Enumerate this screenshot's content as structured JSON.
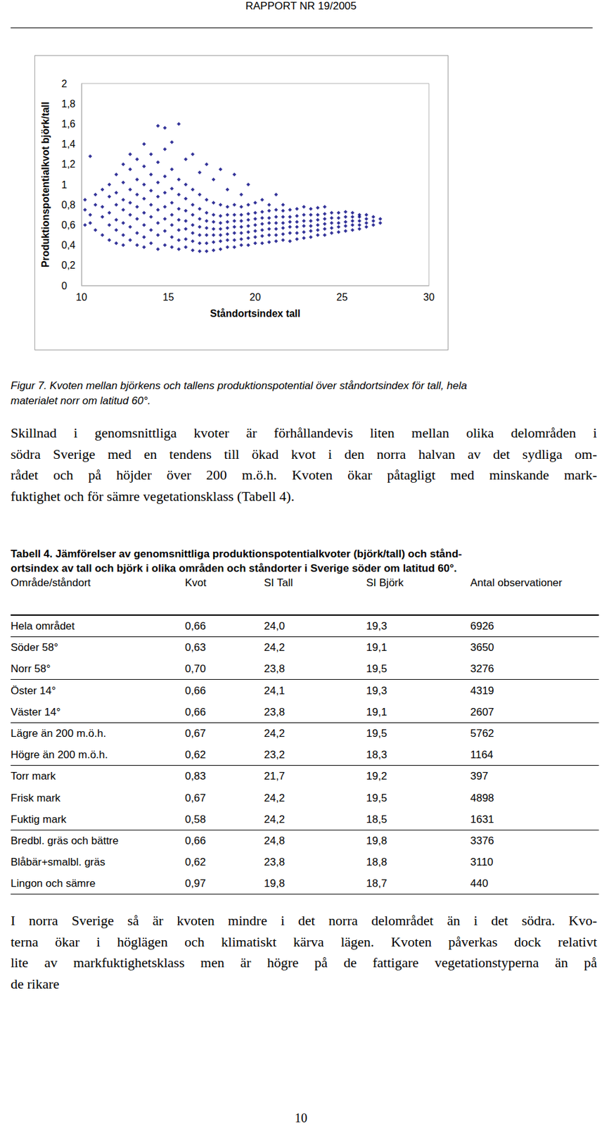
{
  "header": "RAPPORT NR 19/2005",
  "chart_data": {
    "type": "scatter",
    "x_label": "Ståndortsindex tall",
    "y_label": "Produktionspotentialkvot björk/tall",
    "color": "#000080",
    "marker": "diamond",
    "grid": false,
    "xlim": [
      10,
      30
    ],
    "xticks": [
      10,
      15,
      20,
      25,
      30
    ],
    "ylim": [
      0,
      2
    ],
    "yticks": [
      0,
      {
        "value": 0.2,
        "label": "0,2"
      },
      {
        "value": 0.4,
        "label": "0,4"
      },
      {
        "value": 0.6,
        "label": "0,6"
      },
      {
        "value": 0.8,
        "label": "0,8"
      },
      1,
      {
        "value": 1.2,
        "label": "1,2"
      },
      {
        "value": 1.4,
        "label": "1,4"
      },
      {
        "value": 1.6,
        "label": "1,6"
      },
      {
        "value": 1.8,
        "label": "1,8"
      },
      2
    ],
    "x": [
      10.2,
      10.2,
      10.2,
      10.5,
      10.5,
      10.5,
      10.8,
      10.8,
      10.8,
      11.2,
      11.2,
      11.2,
      11.2,
      11.6,
      11.6,
      11.6,
      11.6,
      11.6,
      12.0,
      12.0,
      12.0,
      12.0,
      12.0,
      12.0,
      12.4,
      12.4,
      12.4,
      12.4,
      12.4,
      12.4,
      12.4,
      12.8,
      12.8,
      12.8,
      12.8,
      12.8,
      12.8,
      12.8,
      13.2,
      13.2,
      13.2,
      13.2,
      13.2,
      13.2,
      13.2,
      13.6,
      13.6,
      13.6,
      13.6,
      13.6,
      13.6,
      13.6,
      13.6,
      14.0,
      14.0,
      14.0,
      14.0,
      14.0,
      14.0,
      14.0,
      14.4,
      14.4,
      14.4,
      14.4,
      14.4,
      14.4,
      14.4,
      14.4,
      14.8,
      14.8,
      14.8,
      14.8,
      14.8,
      14.8,
      14.8,
      14.8,
      15.2,
      15.2,
      15.2,
      15.2,
      15.2,
      15.2,
      15.2,
      15.2,
      15.6,
      15.6,
      15.6,
      15.6,
      15.6,
      15.6,
      15.6,
      15.6,
      16.0,
      16.0,
      16.0,
      16.0,
      16.0,
      16.0,
      16.0,
      16.0,
      16.4,
      16.4,
      16.4,
      16.4,
      16.4,
      16.4,
      16.4,
      16.4,
      16.8,
      16.8,
      16.8,
      16.8,
      16.8,
      16.8,
      16.8,
      16.8,
      17.2,
      17.2,
      17.2,
      17.2,
      17.2,
      17.2,
      17.2,
      17.2,
      17.6,
      17.6,
      17.6,
      17.6,
      17.6,
      17.6,
      17.6,
      17.6,
      18.0,
      18.0,
      18.0,
      18.0,
      18.0,
      18.0,
      18.0,
      18.0,
      18.4,
      18.4,
      18.4,
      18.4,
      18.4,
      18.4,
      18.4,
      18.4,
      18.8,
      18.8,
      18.8,
      18.8,
      18.8,
      18.8,
      18.8,
      18.8,
      19.2,
      19.2,
      19.2,
      19.2,
      19.2,
      19.2,
      19.2,
      19.2,
      19.6,
      19.6,
      19.6,
      19.6,
      19.6,
      19.6,
      19.6,
      19.6,
      20.0,
      20.0,
      20.0,
      20.0,
      20.0,
      20.0,
      20.0,
      20.4,
      20.4,
      20.4,
      20.4,
      20.4,
      20.4,
      20.4,
      20.8,
      20.8,
      20.8,
      20.8,
      20.8,
      20.8,
      20.8,
      21.2,
      21.2,
      21.2,
      21.2,
      21.2,
      21.2,
      21.2,
      21.6,
      21.6,
      21.6,
      21.6,
      21.6,
      21.6,
      21.6,
      22.0,
      22.0,
      22.0,
      22.0,
      22.0,
      22.0,
      22.4,
      22.4,
      22.4,
      22.4,
      22.4,
      22.4,
      22.8,
      22.8,
      22.8,
      22.8,
      22.8,
      22.8,
      23.2,
      23.2,
      23.2,
      23.2,
      23.2,
      23.2,
      23.6,
      23.6,
      23.6,
      23.6,
      23.6,
      23.6,
      24.0,
      24.0,
      24.0,
      24.0,
      24.0,
      24.0,
      24.4,
      24.4,
      24.4,
      24.4,
      24.4,
      24.8,
      24.8,
      24.8,
      24.8,
      24.8,
      25.2,
      25.2,
      25.2,
      25.2,
      25.2,
      25.6,
      25.6,
      25.6,
      25.6,
      25.6,
      26.0,
      26.0,
      26.0,
      26.0,
      26.0,
      26.4,
      26.4,
      26.4,
      26.4,
      26.8,
      26.8,
      26.8,
      27.2,
      27.2
    ],
    "values": [
      0.6,
      0.75,
      0.85,
      1.28,
      0.62,
      0.7,
      0.55,
      0.8,
      0.9,
      0.5,
      0.68,
      0.78,
      0.95,
      0.45,
      0.6,
      0.72,
      0.88,
      1.0,
      0.42,
      0.55,
      0.65,
      0.8,
      0.92,
      1.1,
      0.4,
      0.5,
      0.62,
      0.75,
      0.85,
      1.02,
      1.2,
      0.45,
      0.58,
      0.7,
      0.82,
      0.95,
      1.15,
      1.3,
      0.4,
      0.52,
      0.66,
      0.78,
      0.9,
      1.05,
      1.25,
      0.38,
      0.48,
      0.6,
      0.72,
      0.86,
      1.0,
      1.18,
      1.4,
      0.42,
      0.55,
      0.68,
      0.8,
      0.94,
      1.1,
      1.3,
      0.36,
      0.5,
      0.62,
      0.75,
      0.88,
      1.02,
      1.22,
      1.58,
      0.4,
      0.54,
      0.66,
      0.78,
      0.92,
      1.08,
      1.35,
      1.56,
      0.38,
      0.48,
      0.6,
      0.7,
      0.82,
      0.96,
      1.15,
      1.42,
      0.36,
      0.45,
      0.55,
      0.65,
      0.76,
      0.9,
      1.05,
      1.6,
      0.38,
      0.46,
      0.56,
      0.64,
      0.74,
      0.86,
      1.0,
      1.25,
      0.35,
      0.44,
      0.52,
      0.6,
      0.7,
      0.8,
      0.95,
      1.3,
      0.34,
      0.42,
      0.5,
      0.58,
      0.66,
      0.76,
      0.9,
      1.12,
      0.34,
      0.42,
      0.5,
      0.57,
      0.64,
      0.72,
      0.85,
      1.2,
      0.35,
      0.43,
      0.5,
      0.56,
      0.63,
      0.7,
      0.82,
      1.05,
      0.36,
      0.44,
      0.5,
      0.56,
      0.62,
      0.69,
      0.8,
      1.15,
      0.38,
      0.45,
      0.51,
      0.57,
      0.63,
      0.7,
      0.78,
      0.95,
      0.38,
      0.45,
      0.52,
      0.58,
      0.64,
      0.7,
      0.8,
      1.1,
      0.4,
      0.46,
      0.52,
      0.58,
      0.64,
      0.7,
      0.78,
      0.9,
      0.4,
      0.47,
      0.53,
      0.59,
      0.65,
      0.71,
      0.8,
      1.0,
      0.42,
      0.48,
      0.54,
      0.6,
      0.66,
      0.72,
      0.82,
      0.42,
      0.49,
      0.55,
      0.61,
      0.67,
      0.73,
      0.85,
      0.43,
      0.5,
      0.56,
      0.62,
      0.67,
      0.74,
      0.8,
      0.44,
      0.5,
      0.56,
      0.62,
      0.68,
      0.75,
      0.9,
      0.45,
      0.51,
      0.57,
      0.62,
      0.68,
      0.74,
      0.8,
      0.44,
      0.52,
      0.58,
      0.63,
      0.68,
      0.75,
      0.46,
      0.52,
      0.58,
      0.63,
      0.69,
      0.76,
      0.47,
      0.53,
      0.59,
      0.64,
      0.7,
      0.78,
      0.48,
      0.54,
      0.59,
      0.64,
      0.7,
      0.76,
      0.5,
      0.55,
      0.6,
      0.65,
      0.7,
      0.77,
      0.5,
      0.56,
      0.61,
      0.66,
      0.71,
      0.78,
      0.52,
      0.57,
      0.62,
      0.67,
      0.72,
      0.53,
      0.58,
      0.62,
      0.67,
      0.72,
      0.54,
      0.59,
      0.63,
      0.68,
      0.73,
      0.55,
      0.6,
      0.64,
      0.68,
      0.72,
      0.56,
      0.6,
      0.64,
      0.68,
      0.7,
      0.58,
      0.62,
      0.66,
      0.7,
      0.6,
      0.64,
      0.68,
      0.62,
      0.66
    ]
  },
  "caption": [
    "Figur 7. Kvoten mellan björkens och tallens produktionspotential över ståndortsindex för tall, hela",
    "materialet norr om latitud 60°."
  ],
  "paragraph_1": [
    "Skillnad i genomsnittliga kvoter är förhållandevis liten mellan olika delområden i",
    "södra Sverige med en tendens till ökad kvot i den norra halvan av det sydliga om-",
    "rådet och på höjder över 200 m.ö.h. Kvoten ökar påtagligt med minskande mark-",
    "fuktighet och för sämre vegetationsklass (Tabell 4)."
  ],
  "table": {
    "title": [
      "Tabell 4. Jämförelser av genomsnittliga produktionspotentialkvoter (björk/tall) och stånd-",
      "ortsindex av tall och björk i olika områden och ståndorter i Sverige söder om latitud 60°."
    ],
    "columns": [
      "Område/ståndort",
      "Kvot",
      "SI Tall",
      "SI Björk",
      "Antal observationer"
    ],
    "row_groups": [
      [
        [
          "Hela området",
          "0,66",
          "24,0",
          "19,3",
          "6926"
        ]
      ],
      [
        [
          "Söder 58°",
          "0,63",
          "24,2",
          "19,1",
          "3650"
        ],
        [
          "Norr 58°",
          "0,70",
          "23,8",
          "19,5",
          "3276"
        ]
      ],
      [
        [
          "Öster 14°",
          "0,66",
          "24,1",
          "19,3",
          "4319"
        ],
        [
          "Väster 14°",
          "0,66",
          "23,8",
          "19,1",
          "2607"
        ]
      ],
      [
        [
          "Lägre än 200 m.ö.h.",
          "0,67",
          "24,2",
          "19,5",
          "5762"
        ],
        [
          "Högre än 200 m.ö.h.",
          "0,62",
          "23,2",
          "18,3",
          "1164"
        ]
      ],
      [
        [
          "Torr mark",
          "0,83",
          "21,7",
          "19,2",
          "397"
        ],
        [
          "Frisk mark",
          "0,67",
          "24,2",
          "19,5",
          "4898"
        ],
        [
          "Fuktig mark",
          "0,58",
          "24,2",
          "18,5",
          "1631"
        ]
      ],
      [
        [
          "Bredbl. gräs och bättre",
          "0,66",
          "24,8",
          "19,8",
          "3376"
        ],
        [
          "Blåbär+smalbl. gräs",
          "0,62",
          "23,8",
          "18,8",
          "3110"
        ],
        [
          "Lingon och sämre",
          "0,97",
          "19,8",
          "18,7",
          "440"
        ]
      ]
    ]
  },
  "paragraph_2": [
    "I norra Sverige så är kvoten mindre i det norra delområdet än i det södra. Kvo-",
    "terna ökar i höglägen och klimatiskt kärva lägen. Kvoten påverkas dock relativt",
    "lite av markfuktighetsklass men är högre på de fattigare vegetationstyperna än på",
    "de rikare"
  ],
  "page_number": "10"
}
